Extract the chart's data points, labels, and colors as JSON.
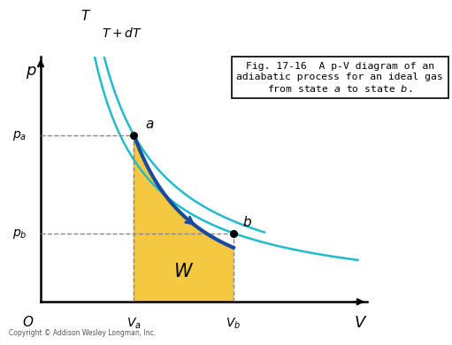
{
  "bg_color": "#ffffff",
  "Va": 0.3,
  "Vb": 0.62,
  "pa": 0.68,
  "pb": 0.28,
  "gamma_adiabat": 1.55,
  "xlim": [
    0.0,
    1.05
  ],
  "ylim": [
    0.0,
    1.0
  ],
  "fill_color": "#F5C842",
  "adiabat_color": "#1A4AA0",
  "isotherm_color": "#22BBCC",
  "dashed_color": "#888888",
  "font_color": "#000000",
  "caption": "Fig. 17-16  A p-V diagram of an\nadiabatic process for an ideal gas\nfrom state α to state β.",
  "copyright": "Copyright © Addison Wesley Longman, Inc."
}
